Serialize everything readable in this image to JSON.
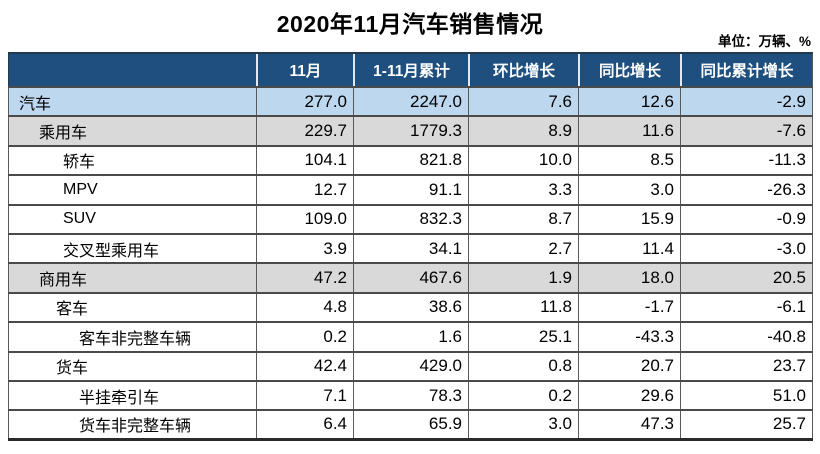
{
  "title": "2020年11月汽车销售情况",
  "unit_label": "单位：万辆、%",
  "colors": {
    "header_bg": "#1E4F7E",
    "header_text": "#FFFFFF",
    "row_highlight_blue": "#BDD7EE",
    "row_highlight_gray": "#D9D9D9",
    "border_dark": "#4A4A4A"
  },
  "table": {
    "columns": [
      "",
      "11月",
      "1-11月累计",
      "环比增长",
      "同比增长",
      "同比累计增长"
    ],
    "rows": [
      {
        "label": "汽车",
        "indent": 10,
        "bg": "blue",
        "values": [
          "277.0",
          "2247.0",
          "7.6",
          "12.6",
          "-2.9"
        ]
      },
      {
        "label": "乘用车",
        "indent": 30,
        "bg": "gray",
        "values": [
          "229.7",
          "1779.3",
          "8.9",
          "11.6",
          "-7.6"
        ]
      },
      {
        "label": "轿车",
        "indent": 54,
        "bg": "white",
        "values": [
          "104.1",
          "821.8",
          "10.0",
          "8.5",
          "-11.3"
        ]
      },
      {
        "label": "MPV",
        "indent": 54,
        "bg": "white",
        "values": [
          "12.7",
          "91.1",
          "3.3",
          "3.0",
          "-26.3"
        ]
      },
      {
        "label": "SUV",
        "indent": 54,
        "bg": "white",
        "values": [
          "109.0",
          "832.3",
          "8.7",
          "15.9",
          "-0.9"
        ]
      },
      {
        "label": "交叉型乘用车",
        "indent": 54,
        "bg": "white",
        "values": [
          "3.9",
          "34.1",
          "2.7",
          "11.4",
          "-3.0"
        ]
      },
      {
        "label": "商用车",
        "indent": 30,
        "bg": "gray",
        "values": [
          "47.2",
          "467.6",
          "1.9",
          "18.0",
          "20.5"
        ]
      },
      {
        "label": "客车",
        "indent": 47,
        "bg": "white",
        "values": [
          "4.8",
          "38.6",
          "11.8",
          "-1.7",
          "-6.1"
        ]
      },
      {
        "label": "客车非完整车辆",
        "indent": 70,
        "bg": "white",
        "values": [
          "0.2",
          "1.6",
          "25.1",
          "-43.3",
          "-40.8"
        ]
      },
      {
        "label": "货车",
        "indent": 47,
        "bg": "white",
        "values": [
          "42.4",
          "429.0",
          "0.8",
          "20.7",
          "23.7"
        ]
      },
      {
        "label": "半挂牵引车",
        "indent": 70,
        "bg": "white",
        "values": [
          "7.1",
          "78.3",
          "0.2",
          "29.6",
          "51.0"
        ]
      },
      {
        "label": "货车非完整车辆",
        "indent": 70,
        "bg": "white",
        "values": [
          "6.4",
          "65.9",
          "3.0",
          "47.3",
          "25.7"
        ]
      }
    ]
  },
  "chart_data": {
    "type": "table",
    "title": "2020年11月汽车销售情况",
    "unit": "万辆、%",
    "columns": [
      "类别",
      "11月",
      "1-11月累计",
      "环比增长",
      "同比增长",
      "同比累计增长"
    ],
    "rows": [
      {
        "category": "汽车",
        "nov": 277.0,
        "jan_nov_total": 2247.0,
        "mom_growth": 7.6,
        "yoy_growth": 12.6,
        "yoy_cumulative_growth": -2.9
      },
      {
        "category": "乘用车",
        "nov": 229.7,
        "jan_nov_total": 1779.3,
        "mom_growth": 8.9,
        "yoy_growth": 11.6,
        "yoy_cumulative_growth": -7.6
      },
      {
        "category": "轿车",
        "nov": 104.1,
        "jan_nov_total": 821.8,
        "mom_growth": 10.0,
        "yoy_growth": 8.5,
        "yoy_cumulative_growth": -11.3
      },
      {
        "category": "MPV",
        "nov": 12.7,
        "jan_nov_total": 91.1,
        "mom_growth": 3.3,
        "yoy_growth": 3.0,
        "yoy_cumulative_growth": -26.3
      },
      {
        "category": "SUV",
        "nov": 109.0,
        "jan_nov_total": 832.3,
        "mom_growth": 8.7,
        "yoy_growth": 15.9,
        "yoy_cumulative_growth": -0.9
      },
      {
        "category": "交叉型乘用车",
        "nov": 3.9,
        "jan_nov_total": 34.1,
        "mom_growth": 2.7,
        "yoy_growth": 11.4,
        "yoy_cumulative_growth": -3.0
      },
      {
        "category": "商用车",
        "nov": 47.2,
        "jan_nov_total": 467.6,
        "mom_growth": 1.9,
        "yoy_growth": 18.0,
        "yoy_cumulative_growth": 20.5
      },
      {
        "category": "客车",
        "nov": 4.8,
        "jan_nov_total": 38.6,
        "mom_growth": 11.8,
        "yoy_growth": -1.7,
        "yoy_cumulative_growth": -6.1
      },
      {
        "category": "客车非完整车辆",
        "nov": 0.2,
        "jan_nov_total": 1.6,
        "mom_growth": 25.1,
        "yoy_growth": -43.3,
        "yoy_cumulative_growth": -40.8
      },
      {
        "category": "货车",
        "nov": 42.4,
        "jan_nov_total": 429.0,
        "mom_growth": 0.8,
        "yoy_growth": 20.7,
        "yoy_cumulative_growth": 23.7
      },
      {
        "category": "半挂牵引车",
        "nov": 7.1,
        "jan_nov_total": 78.3,
        "mom_growth": 0.2,
        "yoy_growth": 29.6,
        "yoy_cumulative_growth": 51.0
      },
      {
        "category": "货车非完整车辆",
        "nov": 6.4,
        "jan_nov_total": 65.9,
        "mom_growth": 3.0,
        "yoy_growth": 47.3,
        "yoy_cumulative_growth": 25.7
      }
    ]
  }
}
